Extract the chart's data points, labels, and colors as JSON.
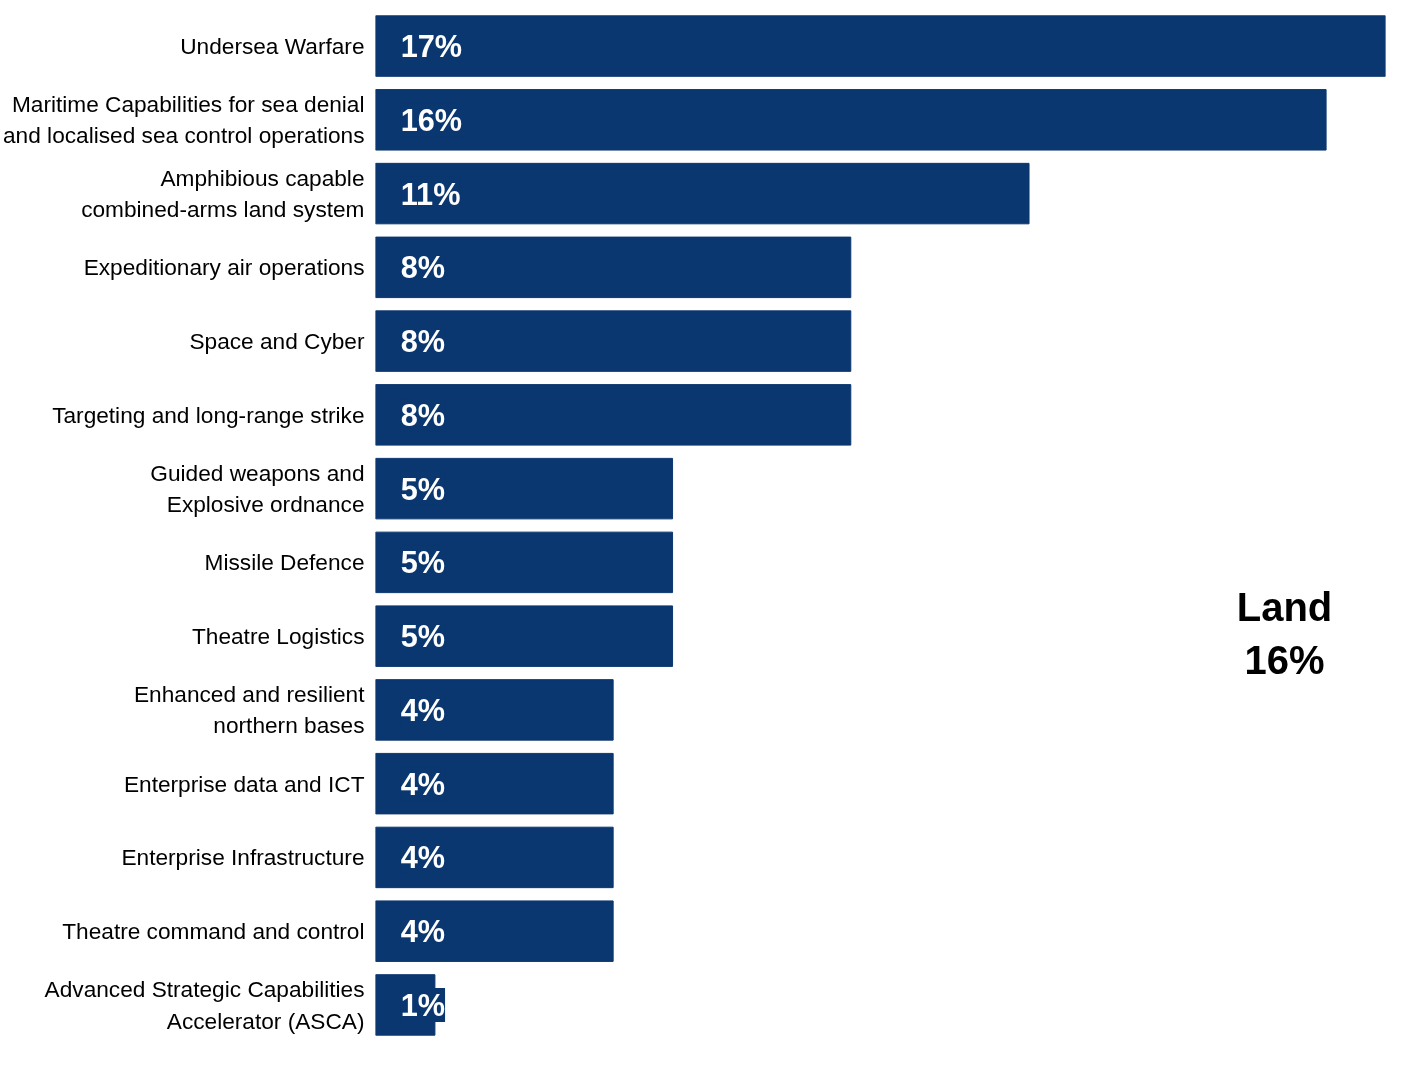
{
  "chart_data": {
    "type": "bar",
    "orientation": "horizontal",
    "categories": [
      "Undersea Warfare",
      "Maritime Capabilities for sea denial\nand localised sea control operations",
      "Amphibious capable\ncombined-arms land system",
      "Expeditionary air operations",
      "Space and Cyber",
      "Targeting and long-range strike",
      "Guided weapons and\nExplosive ordnance",
      "Missile Defence",
      "Theatre Logistics",
      "Enhanced and resilient\nnorthern bases",
      "Enterprise data and ICT",
      "Enterprise Infrastructure",
      "Theatre command and control",
      "Advanced Strategic Capabilities\nAccelerator (ASCA)"
    ],
    "values": [
      17,
      16,
      11,
      8,
      8,
      8,
      5,
      5,
      5,
      4,
      4,
      4,
      4,
      1
    ],
    "value_labels": [
      "17%",
      "16%",
      "11%",
      "8%",
      "8%",
      "8%",
      "5%",
      "5%",
      "5%",
      "4%",
      "4%",
      "4%",
      "4%",
      "1%"
    ],
    "color": "#0b3770",
    "tick_labels": "y",
    "grid": false,
    "annotations": [
      "Land\n16%"
    ]
  }
}
